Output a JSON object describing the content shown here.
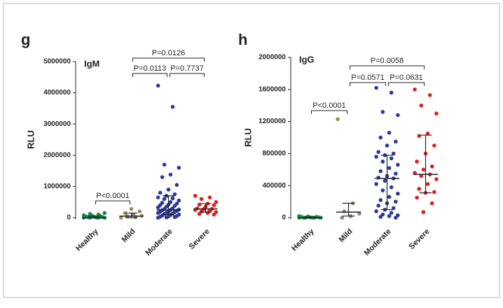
{
  "chart_data": [
    {
      "type": "strip",
      "panel": "g",
      "title": "IgM",
      "ylabel": "RLU",
      "categories": [
        "Healthy",
        "Mild",
        "Moderate",
        "Severe"
      ],
      "colors": [
        "#1a8a4a",
        "#9a8a6a",
        "#2b3a9a",
        "#e02020"
      ],
      "points": [
        [
          0,
          0,
          0,
          0,
          10000,
          20000,
          20000,
          30000,
          40000,
          50000,
          60000,
          80000,
          100000,
          120000,
          150000
        ],
        [
          0,
          20000,
          50000,
          60000,
          100000,
          150000,
          200000,
          280000
        ],
        [
          4230000,
          3550000,
          1700000,
          1600000,
          1380000,
          1300000,
          1050000,
          900000,
          800000,
          750000,
          700000,
          650000,
          620000,
          600000,
          550000,
          500000,
          480000,
          450000,
          420000,
          400000,
          380000,
          350000,
          330000,
          300000,
          280000,
          260000,
          250000,
          240000,
          220000,
          200000,
          190000,
          180000,
          160000,
          150000,
          130000,
          120000,
          100000,
          90000,
          70000,
          50000,
          40000,
          30000,
          20000,
          10000,
          0
        ],
        [
          700000,
          650000,
          600000,
          500000,
          450000,
          420000,
          400000,
          350000,
          300000,
          280000,
          270000,
          250000,
          220000,
          200000,
          180000,
          150000,
          120000,
          100000
        ]
      ],
      "medians": [
        0,
        50000,
        250000,
        280000
      ],
      "q1": [
        0,
        0,
        100000,
        180000
      ],
      "q3": [
        50000,
        150000,
        700000,
        450000
      ],
      "ylim": [
        0,
        5000000
      ],
      "yticks": [
        0,
        1000000,
        2000000,
        3000000,
        4000000,
        5000000
      ],
      "comparisons": [
        {
          "label": "P<0.0001",
          "between": [
            "Healthy",
            "Mild"
          ]
        },
        {
          "label": "P=0.0113",
          "between": [
            "Mild",
            "Moderate"
          ]
        },
        {
          "label": "P=0.7737",
          "between": [
            "Moderate",
            "Severe"
          ]
        },
        {
          "label": "P=0.0126",
          "between": [
            "Mild",
            "Severe"
          ]
        }
      ]
    },
    {
      "type": "strip",
      "panel": "h",
      "title": "IgG",
      "ylabel": "RLU",
      "categories": [
        "Healthy",
        "Mild",
        "Moderate",
        "Severe"
      ],
      "colors": [
        "#1a8a4a",
        "#9a8a6a",
        "#2b3a9a",
        "#e02020"
      ],
      "points": [
        [
          0,
          0,
          0,
          0,
          0,
          0,
          5000,
          5000,
          10000,
          10000,
          15000,
          20000
        ],
        [
          1230000,
          180000,
          80000,
          50000,
          20000,
          0
        ],
        [
          1620000,
          1560000,
          1320000,
          1280000,
          1060000,
          1000000,
          950000,
          900000,
          820000,
          800000,
          780000,
          760000,
          740000,
          700000,
          660000,
          620000,
          580000,
          550000,
          520000,
          500000,
          490000,
          460000,
          420000,
          380000,
          340000,
          300000,
          260000,
          220000,
          200000,
          180000,
          150000,
          120000,
          100000,
          80000,
          60000,
          40000,
          30000,
          20000,
          10000,
          0
        ],
        [
          1600000,
          1530000,
          1400000,
          1300000,
          1050000,
          1020000,
          900000,
          800000,
          700000,
          640000,
          600000,
          560000,
          540000,
          520000,
          480000,
          420000,
          360000,
          320000,
          310000,
          250000,
          180000,
          70000
        ]
      ],
      "medians": [
        0,
        70000,
        490000,
        540000
      ],
      "q1": [
        0,
        20000,
        100000,
        310000
      ],
      "q3": [
        10000,
        180000,
        780000,
        1030000
      ],
      "ylim": [
        0,
        2000000
      ],
      "yticks": [
        0,
        400000,
        800000,
        1200000,
        1600000,
        2000000
      ],
      "comparisons": [
        {
          "label": "P<0.0001",
          "between": [
            "Healthy",
            "Mild"
          ]
        },
        {
          "label": "P=0.0571",
          "between": [
            "Mild",
            "Moderate"
          ]
        },
        {
          "label": "P=0.0631",
          "between": [
            "Moderate",
            "Severe"
          ]
        },
        {
          "label": "P=0.0058",
          "between": [
            "Mild",
            "Severe"
          ]
        }
      ]
    }
  ]
}
